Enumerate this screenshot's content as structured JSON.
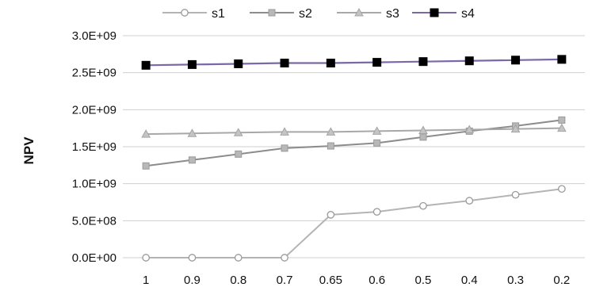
{
  "chart_data": {
    "type": "line",
    "ylabel": "NPV",
    "xlabel": "",
    "categories": [
      "1",
      "0.9",
      "0.8",
      "0.7",
      "0.65",
      "0.6",
      "0.5",
      "0.4",
      "0.3",
      "0.2"
    ],
    "y_tick_labels": [
      "0.0E+00",
      "5.0E+08",
      "1.0E+09",
      "1.5E+09",
      "2.0E+09",
      "2.5E+09",
      "3.0E+09"
    ],
    "ylim": [
      0,
      3000000000
    ],
    "grid": true,
    "legend": "top",
    "series": [
      {
        "name": "s1",
        "color": "#b4b4b4",
        "marker": "circle-open",
        "values": [
          0,
          0,
          0,
          0,
          580000000,
          620000000,
          700000000,
          770000000,
          850000000,
          930000000
        ]
      },
      {
        "name": "s2",
        "color": "#8c8c8c",
        "marker": "square",
        "values": [
          1240000000,
          1320000000,
          1400000000,
          1480000000,
          1510000000,
          1550000000,
          1630000000,
          1710000000,
          1780000000,
          1860000000
        ]
      },
      {
        "name": "s3",
        "color": "#a8a8a8",
        "marker": "triangle",
        "values": [
          1670000000,
          1680000000,
          1690000000,
          1700000000,
          1700000000,
          1710000000,
          1720000000,
          1730000000,
          1740000000,
          1750000000
        ]
      },
      {
        "name": "s4",
        "color": "#7b68a6",
        "marker": "square-filled",
        "values": [
          2600000000,
          2610000000,
          2620000000,
          2630000000,
          2630000000,
          2640000000,
          2650000000,
          2660000000,
          2670000000,
          2680000000
        ]
      }
    ]
  }
}
